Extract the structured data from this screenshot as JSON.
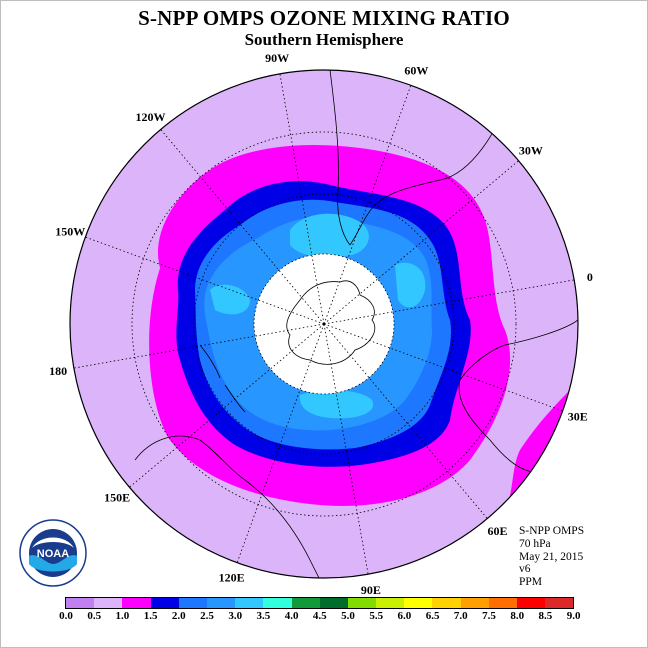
{
  "title": "S-NPP OMPS OZONE MIXING RATIO",
  "subtitle": "Southern Hemisphere",
  "longitude_labels": [
    "90W",
    "60W",
    "30W",
    "0",
    "30E",
    "60E",
    "90E",
    "120E",
    "150E",
    "180",
    "150W",
    "120W"
  ],
  "info": {
    "line1": "S-NPP OMPS",
    "line2": "70 hPa",
    "line3": "May 21, 2015",
    "line4": "v6",
    "line5": "PPM"
  },
  "logo": {
    "text": "NOAA",
    "ring_text": "NATIONAL OCEANIC AND ATMOSPHERIC ADMINISTRATION",
    "ring_text_bottom": "U.S. DEPARTMENT OF COMMERCE"
  },
  "colorbar": {
    "ticks": [
      "0.0",
      "0.5",
      "1.0",
      "1.5",
      "2.0",
      "2.5",
      "3.0",
      "3.5",
      "4.0",
      "4.5",
      "5.0",
      "5.5",
      "6.0",
      "6.5",
      "7.0",
      "7.5",
      "8.0",
      "8.5",
      "9.0"
    ],
    "colors": [
      "#c080f0",
      "#dcb4fa",
      "#ff00ff",
      "#0000e6",
      "#1e78ff",
      "#2896ff",
      "#32c8ff",
      "#32ffdc",
      "#129a3a",
      "#006e2a",
      "#82dc00",
      "#c8f000",
      "#ffff00",
      "#ffd200",
      "#ffa000",
      "#ff6e00",
      "#ff0000",
      "#dc2828",
      "#8c5a3c"
    ]
  },
  "map_colors": {
    "outer": "#dcb4fa",
    "magenta": "#ff00ff",
    "dark_blue": "#0000e6",
    "mid_blue": "#1e78ff",
    "light_blue": "#2896ff",
    "cyan": "#32c8ff",
    "polar_night": "#ffffff"
  }
}
